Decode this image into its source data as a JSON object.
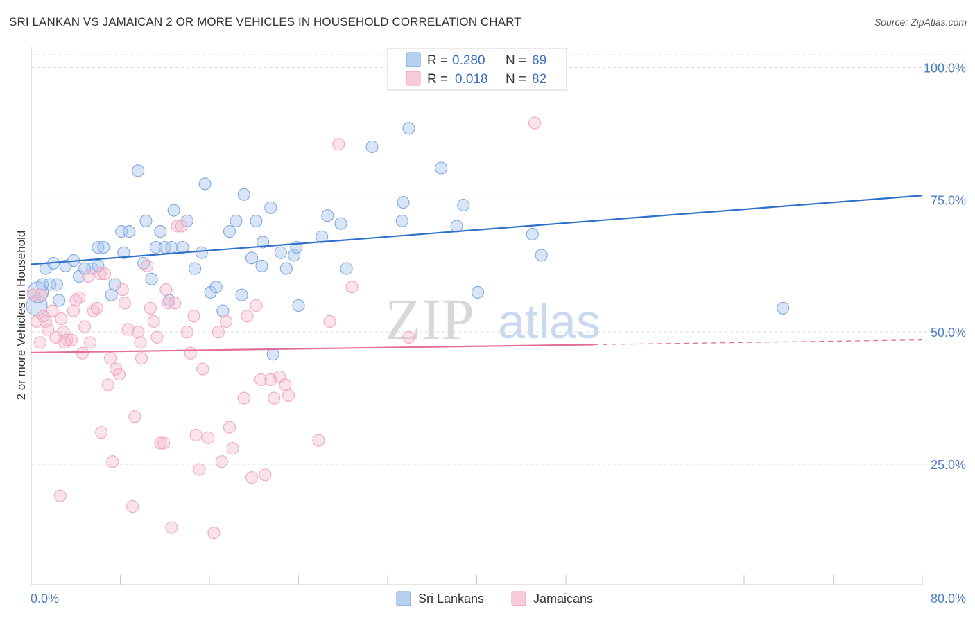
{
  "title": "SRI LANKAN VS JAMAICAN 2 OR MORE VEHICLES IN HOUSEHOLD CORRELATION CHART",
  "source": "Source: ZipAtlas.com",
  "watermark": {
    "zip": "ZIP",
    "atlas": "atlas"
  },
  "legend": {
    "r_label": "R =",
    "n_label": "N =",
    "rows": [
      {
        "r": "0.280",
        "n": "69",
        "color": "#a9c6ee"
      },
      {
        "r": "0.018",
        "n": "82",
        "color": "#f6b9cc"
      }
    ]
  },
  "bottom_legend": [
    "Sri Lankans",
    "Jamaicans"
  ],
  "chart_data": {
    "type": "scatter",
    "title": "SRI LANKAN VS JAMAICAN 2 OR MORE VEHICLES IN HOUSEHOLD CORRELATION CHART",
    "xlabel": "",
    "ylabel": "2 or more Vehicles in Household",
    "xlim": [
      0,
      80
    ],
    "ylim": [
      0,
      105
    ],
    "x_tick_labels": [
      "0.0%",
      "80.0%"
    ],
    "y_ticks": [
      25,
      50,
      75,
      100
    ],
    "y_tick_labels": [
      "25.0%",
      "50.0%",
      "75.0%",
      "100.0%"
    ],
    "grid": true,
    "legend_position": "top-center",
    "series": [
      {
        "name": "Sri Lankans",
        "color": "#7fa8e0",
        "line_color": "#2d6fc9",
        "trend": {
          "x0": 0,
          "y0": 62.8,
          "x1": 80,
          "y1": 75.8
        },
        "points": [
          [
            0.5,
            55
          ],
          [
            0.6,
            57.5
          ],
          [
            1,
            59
          ],
          [
            1.3,
            62
          ],
          [
            1.7,
            59
          ],
          [
            2.3,
            59
          ],
          [
            2.5,
            56
          ],
          [
            3.1,
            62.5
          ],
          [
            3.8,
            63.5
          ],
          [
            4.3,
            60.5
          ],
          [
            4.8,
            62
          ],
          [
            5.5,
            62
          ],
          [
            6,
            66
          ],
          [
            6.5,
            66
          ],
          [
            7.2,
            57
          ],
          [
            7.5,
            59
          ],
          [
            8.1,
            69
          ],
          [
            8.3,
            65
          ],
          [
            8.8,
            69
          ],
          [
            9.6,
            80.5
          ],
          [
            10.1,
            63
          ],
          [
            10.3,
            71
          ],
          [
            10.8,
            60
          ],
          [
            11.2,
            66
          ],
          [
            11.6,
            69
          ],
          [
            12,
            66
          ],
          [
            12.6,
            66
          ],
          [
            12.8,
            73
          ],
          [
            13.6,
            66
          ],
          [
            14,
            71
          ],
          [
            14.7,
            62
          ],
          [
            15.3,
            65
          ],
          [
            15.6,
            78
          ],
          [
            16.1,
            57.5
          ],
          [
            16.6,
            58.5
          ],
          [
            17.2,
            54
          ],
          [
            17.8,
            69
          ],
          [
            18.4,
            71
          ],
          [
            18.9,
            57
          ],
          [
            19.1,
            76
          ],
          [
            19.8,
            64
          ],
          [
            20.2,
            71
          ],
          [
            20.7,
            62.5
          ],
          [
            20.8,
            67
          ],
          [
            21.5,
            73.5
          ],
          [
            21.7,
            45.8
          ],
          [
            22.4,
            65
          ],
          [
            22.9,
            62
          ],
          [
            23.6,
            64.5
          ],
          [
            23.8,
            66
          ],
          [
            26.1,
            68
          ],
          [
            26.6,
            72
          ],
          [
            27.8,
            70.5
          ],
          [
            28.3,
            62
          ],
          [
            30.6,
            85
          ],
          [
            33.3,
            71
          ],
          [
            33.4,
            74.5
          ],
          [
            33.9,
            88.5
          ],
          [
            36.8,
            81
          ],
          [
            38.2,
            70
          ],
          [
            38.8,
            74
          ],
          [
            40.1,
            57.5
          ],
          [
            45,
            68.5
          ],
          [
            45.8,
            64.5
          ],
          [
            67.5,
            54.5
          ],
          [
            6,
            62.5
          ],
          [
            2,
            63
          ],
          [
            12.4,
            56
          ],
          [
            24,
            55
          ]
        ]
      },
      {
        "name": "Jamaicans",
        "color": "#f3a6bf",
        "line_color": "#e36e98",
        "trend": {
          "x0": 0,
          "y0": 46.1,
          "x1": 80,
          "y1": 48.5,
          "solid_end_x": 50.5
        },
        "points": [
          [
            0.2,
            57
          ],
          [
            0.5,
            52
          ],
          [
            0.8,
            48
          ],
          [
            1.1,
            53
          ],
          [
            1.3,
            52
          ],
          [
            1.5,
            50.5
          ],
          [
            1.9,
            54
          ],
          [
            2.2,
            49
          ],
          [
            2.6,
            19
          ],
          [
            2.9,
            50
          ],
          [
            3.2,
            48.5
          ],
          [
            3.6,
            48.5
          ],
          [
            3.8,
            54
          ],
          [
            4,
            56
          ],
          [
            4.3,
            56.5
          ],
          [
            4.6,
            46
          ],
          [
            4.8,
            51
          ],
          [
            5.1,
            60.5
          ],
          [
            5.3,
            48
          ],
          [
            5.6,
            54
          ],
          [
            5.9,
            54.5
          ],
          [
            6.2,
            61
          ],
          [
            6.3,
            31
          ],
          [
            6.6,
            61
          ],
          [
            6.9,
            40
          ],
          [
            7.1,
            45
          ],
          [
            7.3,
            25.5
          ],
          [
            7.6,
            43
          ],
          [
            7.9,
            42
          ],
          [
            8.2,
            58
          ],
          [
            8.4,
            55.5
          ],
          [
            8.7,
            50.5
          ],
          [
            9.1,
            17
          ],
          [
            9.3,
            34
          ],
          [
            9.6,
            50
          ],
          [
            9.9,
            45
          ],
          [
            10.4,
            62.5
          ],
          [
            10.7,
            54.5
          ],
          [
            11,
            52
          ],
          [
            11.3,
            49
          ],
          [
            11.6,
            29
          ],
          [
            11.9,
            29
          ],
          [
            12.1,
            58
          ],
          [
            12.3,
            55.5
          ],
          [
            12.6,
            13
          ],
          [
            12.9,
            55.5
          ],
          [
            13.1,
            70
          ],
          [
            13.5,
            70
          ],
          [
            14,
            50
          ],
          [
            14.3,
            46
          ],
          [
            14.6,
            53
          ],
          [
            14.8,
            30.5
          ],
          [
            15.1,
            24
          ],
          [
            15.4,
            43
          ],
          [
            15.9,
            30
          ],
          [
            16.4,
            12
          ],
          [
            16.8,
            50
          ],
          [
            17.1,
            25.5
          ],
          [
            17.5,
            52
          ],
          [
            17.8,
            32
          ],
          [
            18.1,
            28
          ],
          [
            19.1,
            37.5
          ],
          [
            19.4,
            53
          ],
          [
            19.8,
            22.5
          ],
          [
            20.2,
            55
          ],
          [
            20.6,
            41
          ],
          [
            21,
            23
          ],
          [
            21.5,
            41
          ],
          [
            21.8,
            37.5
          ],
          [
            22.3,
            41.5
          ],
          [
            22.8,
            40
          ],
          [
            23.1,
            38
          ],
          [
            25.8,
            29.5
          ],
          [
            26.8,
            52
          ],
          [
            27.6,
            85.5
          ],
          [
            28.8,
            58.5
          ],
          [
            33.9,
            49
          ],
          [
            45.2,
            89.5
          ],
          [
            0.9,
            57
          ],
          [
            3,
            48
          ],
          [
            2.7,
            52.5
          ],
          [
            9.8,
            48
          ]
        ]
      }
    ]
  }
}
